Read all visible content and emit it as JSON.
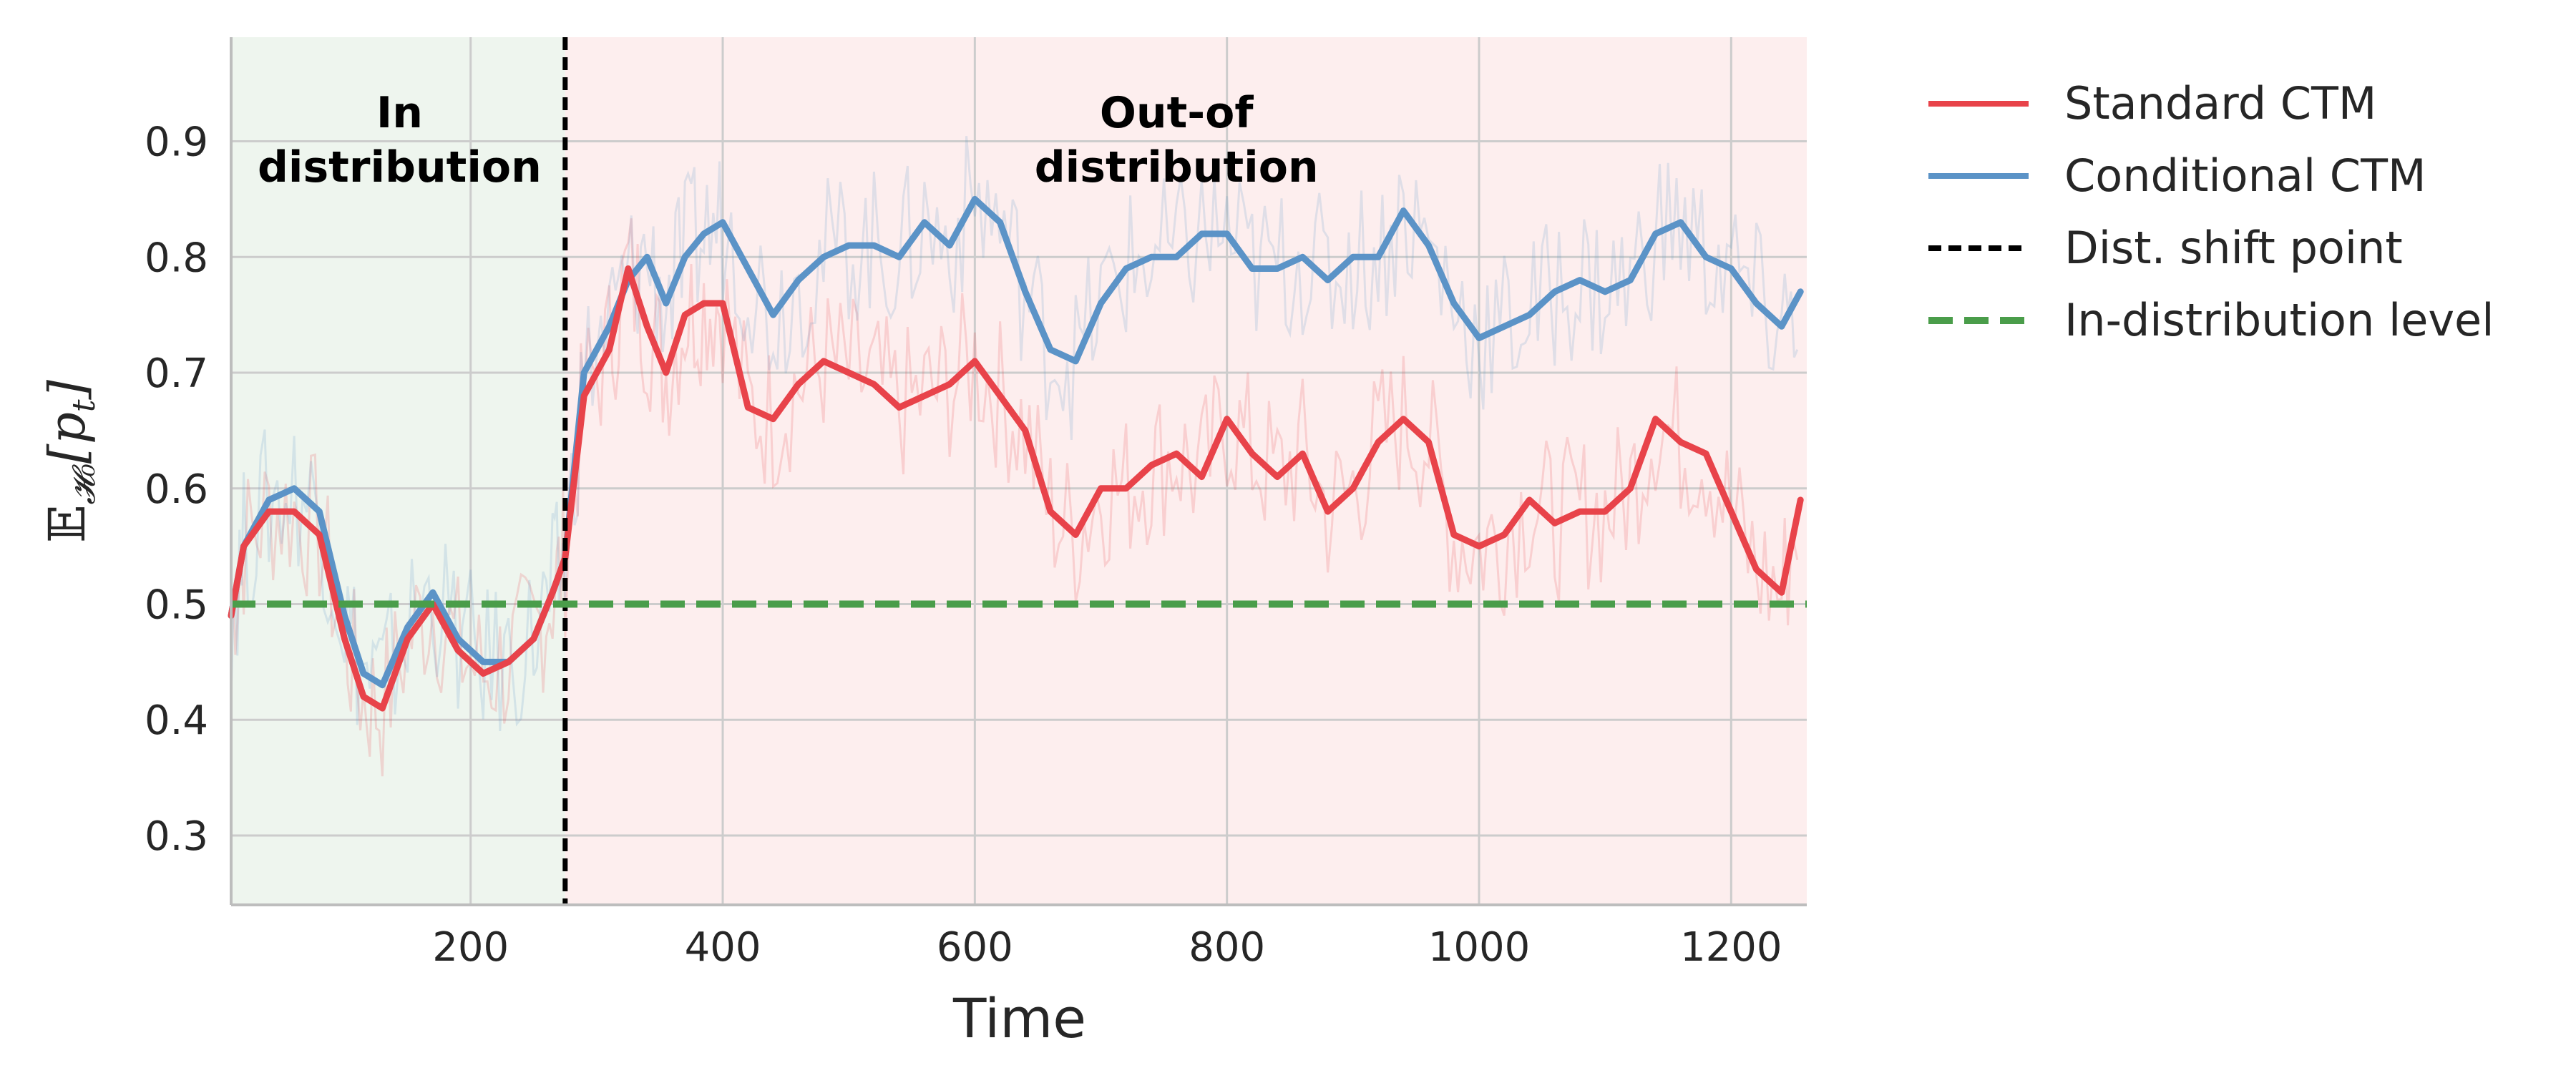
{
  "chart_data": {
    "type": "line",
    "title": "",
    "xlabel": "Time",
    "ylabel": "𝔼",
    "ylabel_sub": "𝓗₀",
    "ylabel_rest": "[p",
    "ylabel_sub2": "t",
    "ylabel_close": "]",
    "xlim": [
      10,
      1260
    ],
    "ylim": [
      0.24,
      0.99
    ],
    "xticks": [
      200,
      400,
      600,
      800,
      1000,
      1200
    ],
    "yticks": [
      0.3,
      0.4,
      0.5,
      0.6,
      0.7,
      0.8,
      0.9
    ],
    "xtick_labels": [
      "200",
      "400",
      "600",
      "800",
      "1000",
      "1200"
    ],
    "ytick_labels": [
      "0.3",
      "0.4",
      "0.5",
      "0.6",
      "0.7",
      "0.8",
      "0.9"
    ],
    "grid": true,
    "legend_position": "outside-right-top",
    "regions": [
      {
        "label_line1": "In",
        "label_line2": "distribution",
        "x_start": 10,
        "x_end": 275,
        "color": "#eef5ee"
      },
      {
        "label_line1": "Out-of",
        "label_line2": "distribution",
        "x_start": 275,
        "x_end": 1260,
        "color": "#fdeeee"
      }
    ],
    "shift_point": 275,
    "in_distribution_level": 0.5,
    "series": [
      {
        "name": "Standard CTM",
        "color": "#e8434a",
        "x": [
          10,
          20,
          40,
          60,
          80,
          100,
          115,
          130,
          150,
          170,
          190,
          210,
          230,
          250,
          265,
          275,
          290,
          310,
          325,
          340,
          355,
          370,
          385,
          400,
          420,
          440,
          460,
          480,
          500,
          520,
          540,
          560,
          580,
          600,
          620,
          640,
          660,
          680,
          700,
          720,
          740,
          760,
          780,
          800,
          820,
          840,
          860,
          880,
          900,
          920,
          940,
          960,
          980,
          1000,
          1020,
          1040,
          1060,
          1080,
          1100,
          1120,
          1140,
          1160,
          1180,
          1200,
          1220,
          1240,
          1255
        ],
        "values": [
          0.49,
          0.55,
          0.58,
          0.58,
          0.56,
          0.47,
          0.42,
          0.41,
          0.47,
          0.5,
          0.46,
          0.44,
          0.45,
          0.47,
          0.51,
          0.54,
          0.68,
          0.72,
          0.79,
          0.74,
          0.7,
          0.75,
          0.76,
          0.76,
          0.67,
          0.66,
          0.69,
          0.71,
          0.7,
          0.69,
          0.67,
          0.68,
          0.69,
          0.71,
          0.68,
          0.65,
          0.58,
          0.56,
          0.6,
          0.6,
          0.62,
          0.63,
          0.61,
          0.66,
          0.63,
          0.61,
          0.63,
          0.58,
          0.6,
          0.64,
          0.66,
          0.64,
          0.56,
          0.55,
          0.56,
          0.59,
          0.57,
          0.58,
          0.58,
          0.6,
          0.66,
          0.64,
          0.63,
          0.58,
          0.53,
          0.51,
          0.59
        ]
      },
      {
        "name": "Conditional CTM",
        "color": "#5b93c7",
        "x": [
          10,
          20,
          40,
          60,
          80,
          100,
          115,
          130,
          150,
          170,
          190,
          210,
          230,
          250,
          265,
          275,
          290,
          310,
          325,
          340,
          355,
          370,
          385,
          400,
          420,
          440,
          460,
          480,
          500,
          520,
          540,
          560,
          580,
          600,
          620,
          640,
          660,
          680,
          700,
          720,
          740,
          760,
          780,
          800,
          820,
          840,
          860,
          880,
          900,
          920,
          940,
          960,
          980,
          1000,
          1020,
          1040,
          1060,
          1080,
          1100,
          1120,
          1140,
          1160,
          1180,
          1200,
          1220,
          1240,
          1255
        ],
        "values": [
          0.49,
          0.55,
          0.59,
          0.6,
          0.58,
          0.49,
          0.44,
          0.43,
          0.48,
          0.51,
          0.47,
          0.45,
          0.45,
          0.47,
          0.51,
          0.54,
          0.7,
          0.74,
          0.78,
          0.8,
          0.76,
          0.8,
          0.82,
          0.83,
          0.79,
          0.75,
          0.78,
          0.8,
          0.81,
          0.81,
          0.8,
          0.83,
          0.81,
          0.85,
          0.83,
          0.77,
          0.72,
          0.71,
          0.76,
          0.79,
          0.8,
          0.8,
          0.82,
          0.82,
          0.79,
          0.79,
          0.8,
          0.78,
          0.8,
          0.8,
          0.84,
          0.81,
          0.76,
          0.73,
          0.74,
          0.75,
          0.77,
          0.78,
          0.77,
          0.78,
          0.82,
          0.83,
          0.8,
          0.79,
          0.76,
          0.74,
          0.77
        ]
      }
    ],
    "legend": [
      {
        "label": "Standard CTM",
        "color": "#e8434a",
        "style": "solid"
      },
      {
        "label": "Conditional CTM",
        "color": "#5b93c7",
        "style": "solid"
      },
      {
        "label": "Dist. shift point",
        "color": "#000000",
        "style": "dashed"
      },
      {
        "label": "In-distribution level",
        "color": "#4a9d4a",
        "style": "dashed"
      }
    ]
  }
}
